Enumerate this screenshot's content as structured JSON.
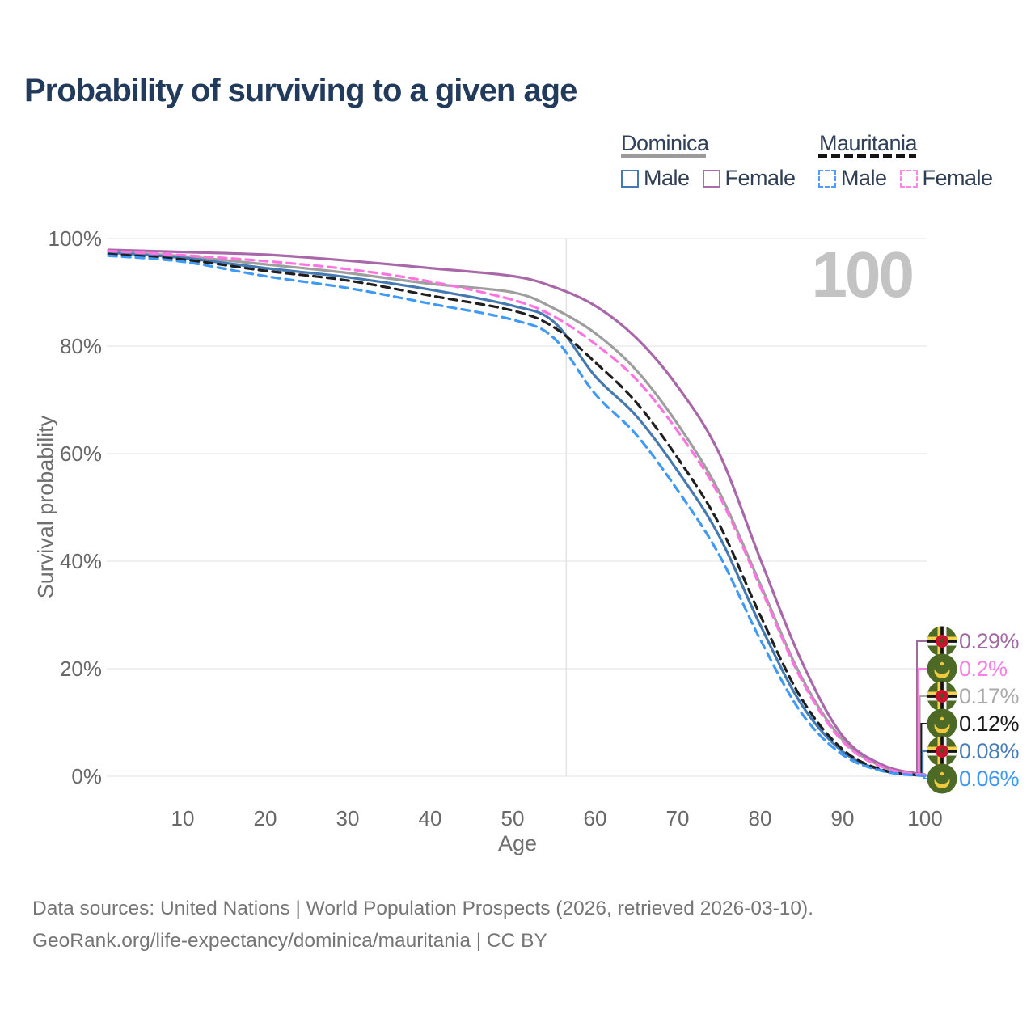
{
  "title": "Probability of surviving to a given age",
  "watermark_age": "100",
  "legend": {
    "groups": [
      {
        "label": "Dominica",
        "underline_style": "solid",
        "underline_color": "#9b9b9b",
        "items": [
          {
            "label": "Male",
            "color": "#4579b2",
            "dashed": false
          },
          {
            "label": "Female",
            "color": "#ad6cad",
            "dashed": false
          }
        ]
      },
      {
        "label": "Mauritania",
        "underline_style": "dashed",
        "underline_color": "#141414",
        "items": [
          {
            "label": "Male",
            "color": "#4f9dff",
            "dashed": true
          },
          {
            "label": "Female",
            "color": "#ff87e6",
            "dashed": true
          }
        ]
      }
    ]
  },
  "chart_data": {
    "type": "line",
    "title": "Probability of surviving to a given age",
    "xlabel": "Age",
    "ylabel": "Survival probability",
    "xlim": [
      1,
      100
    ],
    "ylim": [
      0,
      100
    ],
    "grid": "horizontal-only",
    "x_ticks": [
      10,
      20,
      30,
      40,
      50,
      60,
      70,
      80,
      90,
      100
    ],
    "y_ticks": [
      {
        "label": "0%",
        "value": 0
      },
      {
        "label": "20%",
        "value": 20
      },
      {
        "label": "40%",
        "value": 40
      },
      {
        "label": "60%",
        "value": 60
      },
      {
        "label": "80%",
        "value": 80
      },
      {
        "label": "100%",
        "value": 100
      }
    ],
    "guideline_age": 56.5,
    "ages": [
      1,
      10,
      20,
      30,
      40,
      50,
      55,
      60,
      65,
      70,
      75,
      80,
      85,
      90,
      95,
      100
    ],
    "series": [
      {
        "name": "Dominica Both sexes",
        "country": "Dominica",
        "sex": "both",
        "color": "#9e9e9e",
        "dashed": false,
        "values": [
          97.6,
          96.7,
          95.2,
          93.6,
          91.6,
          90.0,
          87.0,
          82.4,
          75.5,
          65.5,
          53.0,
          35.8,
          18.5,
          6.8,
          1.7,
          0.17
        ]
      },
      {
        "name": "Dominica Female",
        "country": "Dominica",
        "sex": "female",
        "color": "#a767a9",
        "dashed": false,
        "values": [
          97.9,
          97.5,
          97.0,
          95.9,
          94.5,
          93.0,
          91.0,
          87.5,
          81.5,
          72.5,
          60.2,
          40.5,
          21.5,
          7.5,
          2.0,
          0.29
        ]
      },
      {
        "name": "Dominica Male",
        "country": "Dominica",
        "sex": "male",
        "color": "#4579b2",
        "dashed": false,
        "values": [
          97.4,
          96.4,
          94.5,
          92.8,
          90.5,
          87.5,
          84.5,
          74.4,
          67.0,
          56.8,
          44.8,
          28.2,
          13.4,
          4.6,
          1.0,
          0.08
        ]
      },
      {
        "name": "Mauritania Both sexes",
        "country": "Mauritania",
        "sex": "both",
        "color": "#1f1f1f",
        "dashed": true,
        "values": [
          97.1,
          96.1,
          94.0,
          92.2,
          89.4,
          86.6,
          83.5,
          77.0,
          69.5,
          59.2,
          47.0,
          30.0,
          14.5,
          5.0,
          1.1,
          0.12
        ]
      },
      {
        "name": "Mauritania Female",
        "country": "Mauritania",
        "sex": "female",
        "color": "#ff74e0",
        "dashed": true,
        "values": [
          97.7,
          96.9,
          95.8,
          94.3,
          92.0,
          88.6,
          85.5,
          80.4,
          73.8,
          64.2,
          52.3,
          35.3,
          18.0,
          6.5,
          1.6,
          0.2
        ]
      },
      {
        "name": "Mauritania Male",
        "country": "Mauritania",
        "sex": "male",
        "color": "#3f99f7",
        "dashed": true,
        "values": [
          96.8,
          95.7,
          93.0,
          90.8,
          87.9,
          84.9,
          81.5,
          71.1,
          63.5,
          53.2,
          41.3,
          25.5,
          11.8,
          4.0,
          0.9,
          0.06
        ]
      }
    ],
    "end_labels": [
      {
        "text": "0.29%",
        "color": "#9e6ba0",
        "flag": "dominica",
        "series": "Dominica Female"
      },
      {
        "text": "0.2%",
        "color": "#fb7fe6",
        "flag": "mauritania",
        "series": "Mauritania Female"
      },
      {
        "text": "0.17%",
        "color": "#aaaaaa",
        "flag": "dominica",
        "series": "Dominica Both sexes"
      },
      {
        "text": "0.12%",
        "color": "#1b1b1b",
        "flag": "mauritania",
        "series": "Mauritania Both sexes"
      },
      {
        "text": "0.08%",
        "color": "#4b7cba",
        "flag": "dominica",
        "series": "Dominica Male"
      },
      {
        "text": "0.06%",
        "color": "#3f97f5",
        "flag": "mauritania",
        "series": "Mauritania Male"
      }
    ],
    "flag_colors": {
      "dominica": {
        "field": "#4c6a26",
        "cross_yellow": "#f5d44c",
        "cross_black": "#141414",
        "cross_white": "#f2f2f2",
        "disc_red": "#c8142e",
        "parrot": "#3a5a20"
      },
      "mauritania": {
        "field": "#4c6a26",
        "crescent_gold": "#efc93f"
      }
    },
    "gridline_color": "#ececec"
  },
  "footer": {
    "line1": "Data sources: United Nations | World Population Prospects (2026, retrieved 2026-03-10).",
    "line2": "GeoRank.org/life-expectancy/dominica/mauritania | CC BY"
  }
}
